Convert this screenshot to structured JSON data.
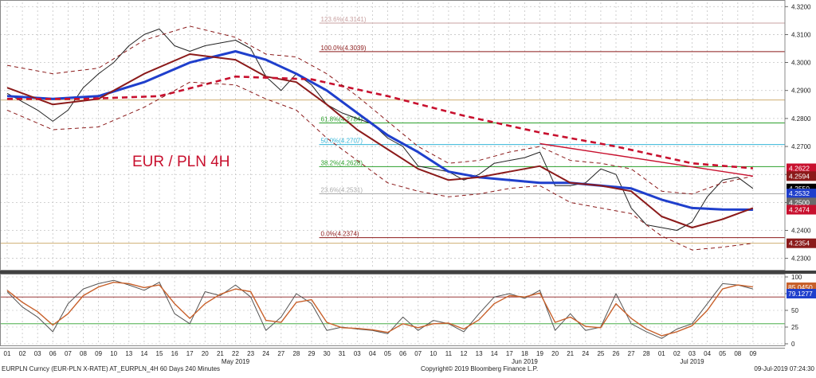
{
  "chart_data": [
    {
      "type": "line",
      "title": "EUR / PLN 4H",
      "y_axis": {
        "ticks": [
          "4.2300",
          "4.2400",
          "4.2500",
          "4.2600",
          "4.2700",
          "4.2800",
          "4.2900",
          "4.3000",
          "4.3100",
          "4.3200"
        ],
        "ylim": [
          4.2265,
          4.3215
        ]
      },
      "x_axis": {
        "day_labels": [
          "01",
          "02",
          "03",
          "06",
          "07",
          "08",
          "09",
          "10",
          "13",
          "14",
          "15",
          "16",
          "17",
          "20",
          "21",
          "22",
          "23",
          "24",
          "27",
          "28",
          "29",
          "30",
          "31",
          "03",
          "04",
          "05",
          "06",
          "07",
          "10",
          "11",
          "12",
          "13",
          "14",
          "17",
          "18",
          "19",
          "20",
          "21",
          "24",
          "25",
          "26",
          "27",
          "28",
          "01",
          "02",
          "03",
          "04",
          "05",
          "08",
          "09"
        ],
        "month_labels": [
          {
            "text": "May 2019",
            "day_index": 15
          },
          {
            "text": "Jun 2019",
            "day_index": 34
          },
          {
            "text": "Jul 2019",
            "day_index": 45
          }
        ]
      },
      "fibonacci_levels": [
        {
          "label": "123.6%(4.3141)",
          "value": 4.3141
        },
        {
          "label": "100.0%(4.3039)",
          "value": 4.3039
        },
        {
          "label": "61.8%(4.2784)",
          "value": 4.2784
        },
        {
          "label": "50.0%(4.2707)",
          "value": 4.2707
        },
        {
          "label": "38.2%(4.2628)",
          "value": 4.2628
        },
        {
          "label": "23.6%(4.2531)",
          "value": 4.2531
        },
        {
          "label": "0.0%(4.2374)",
          "value": 4.2374
        }
      ],
      "reference_lines": [
        4.2866,
        4.2354
      ],
      "price_tags": [
        {
          "text": "4.2622",
          "value": 4.2622,
          "color": "#c8102e"
        },
        {
          "text": "4.2594",
          "value": 4.2594,
          "color": "#8b1a1a"
        },
        {
          "text": "4.2550",
          "value": 4.255,
          "color": "#000000"
        },
        {
          "text": "4.2532",
          "value": 4.2532,
          "color": "#1f3fcc"
        },
        {
          "text": "4.2500",
          "value": 4.25,
          "color": "#6b6b6b"
        },
        {
          "text": "4.2474",
          "value": 4.2474,
          "color": "#c8102e"
        },
        {
          "text": "4.2354",
          "value": 4.2354,
          "color": "#8b1a1a"
        }
      ],
      "series": [
        {
          "name": "",
          "role": "price",
          "color": "#222222",
          "x": [
            0,
            1,
            2,
            3,
            4,
            5,
            6,
            7,
            8,
            9,
            10,
            11,
            12,
            13,
            14,
            15,
            16,
            17,
            18,
            19,
            20,
            21,
            22,
            23,
            24,
            25,
            26,
            27,
            28,
            29,
            30,
            31,
            32,
            33,
            34,
            35,
            36,
            37,
            38,
            39,
            40,
            41,
            42,
            43,
            44,
            45,
            46,
            47,
            48,
            49
          ],
          "values": [
            4.289,
            4.286,
            4.283,
            4.279,
            4.283,
            4.291,
            4.296,
            4.3,
            4.306,
            4.31,
            4.312,
            4.306,
            4.304,
            4.306,
            4.307,
            4.308,
            4.305,
            4.295,
            4.29,
            4.296,
            4.292,
            4.285,
            4.282,
            4.28,
            4.278,
            4.273,
            4.27,
            4.263,
            4.262,
            4.261,
            4.258,
            4.26,
            4.264,
            4.265,
            4.266,
            4.268,
            4.256,
            4.256,
            4.257,
            4.262,
            4.26,
            4.248,
            4.242,
            4.241,
            4.24,
            4.243,
            4.252,
            4.258,
            4.259,
            4.255
          ]
        },
        {
          "name": "",
          "role": "fast moving average",
          "color": "#1f3fcc",
          "x": [
            0,
            3,
            6,
            9,
            12,
            15,
            17,
            19,
            21,
            23,
            25,
            27,
            29,
            31,
            33,
            35,
            37,
            39,
            41,
            43,
            45,
            47,
            49
          ],
          "values": [
            4.288,
            4.287,
            4.288,
            4.293,
            4.3,
            4.304,
            4.301,
            4.296,
            4.29,
            4.282,
            4.274,
            4.268,
            4.261,
            4.259,
            4.258,
            4.257,
            4.257,
            4.256,
            4.255,
            4.251,
            4.248,
            4.2475,
            4.2474
          ]
        },
        {
          "name": "",
          "role": "mid moving average",
          "color": "#8b1a1a",
          "x": [
            0,
            3,
            6,
            9,
            12,
            15,
            17,
            19,
            21,
            23,
            25,
            27,
            29,
            31,
            33,
            35,
            37,
            39,
            41,
            43,
            45,
            47,
            49
          ],
          "values": [
            4.291,
            4.285,
            4.287,
            4.296,
            4.303,
            4.301,
            4.295,
            4.293,
            4.285,
            4.276,
            4.269,
            4.262,
            4.258,
            4.259,
            4.261,
            4.263,
            4.257,
            4.256,
            4.254,
            4.245,
            4.241,
            4.244,
            4.248
          ]
        },
        {
          "name": "",
          "role": "slow moving average",
          "color": "#c8102e",
          "x": [
            0,
            5,
            10,
            15,
            20,
            25,
            30,
            35,
            40,
            45,
            49
          ],
          "values": [
            4.287,
            4.287,
            4.288,
            4.295,
            4.294,
            4.288,
            4.281,
            4.275,
            4.27,
            4.264,
            4.2622
          ]
        },
        {
          "name": "",
          "role": "envelope upper",
          "color": "#8b1a1a",
          "x": [
            0,
            3,
            6,
            9,
            12,
            15,
            17,
            19,
            21,
            23,
            25,
            27,
            29,
            31,
            33,
            35,
            37,
            39,
            41,
            43,
            45,
            47,
            49
          ],
          "values": [
            4.299,
            4.296,
            4.298,
            4.308,
            4.313,
            4.309,
            4.303,
            4.302,
            4.296,
            4.288,
            4.279,
            4.27,
            4.264,
            4.265,
            4.268,
            4.27,
            4.265,
            4.264,
            4.262,
            4.254,
            4.253,
            4.257,
            4.2594
          ]
        },
        {
          "name": "",
          "role": "envelope lower",
          "color": "#8b1a1a",
          "x": [
            0,
            3,
            6,
            9,
            12,
            15,
            17,
            19,
            21,
            23,
            25,
            27,
            29,
            31,
            33,
            35,
            37,
            39,
            41,
            43,
            45,
            47,
            49
          ],
          "values": [
            4.283,
            4.276,
            4.277,
            4.284,
            4.293,
            4.292,
            4.287,
            4.283,
            4.273,
            4.265,
            4.257,
            4.254,
            4.252,
            4.253,
            4.255,
            4.256,
            4.25,
            4.248,
            4.246,
            4.238,
            4.233,
            4.234,
            4.2354
          ]
        },
        {
          "name": "",
          "role": "trendline",
          "color": "#c8102e",
          "x": [
            35,
            49
          ],
          "values": [
            4.271,
            4.2594
          ]
        }
      ],
      "grid": true
    },
    {
      "type": "line",
      "title": "",
      "y_axis": {
        "ticks": [
          "0",
          "25",
          "50",
          "75",
          "100"
        ],
        "ylim": [
          0,
          100
        ]
      },
      "reference_lines": [
        70,
        30
      ],
      "price_tags": [
        {
          "text": "85.0450",
          "color": "#c8602a"
        },
        {
          "text": "79.1277",
          "color": "#1f3fcc"
        }
      ],
      "series": [
        {
          "name": "",
          "role": "oscillator fast",
          "color": "#555555",
          "x": [
            0,
            1,
            2,
            3,
            4,
            5,
            6,
            7,
            8,
            9,
            10,
            11,
            12,
            13,
            14,
            15,
            16,
            17,
            18,
            19,
            20,
            21,
            22,
            23,
            24,
            25,
            26,
            27,
            28,
            29,
            30,
            31,
            32,
            33,
            34,
            35,
            36,
            37,
            38,
            39,
            40,
            41,
            42,
            43,
            44,
            45,
            46,
            47,
            48,
            49
          ],
          "values": [
            78,
            55,
            40,
            18,
            60,
            82,
            90,
            95,
            88,
            80,
            92,
            45,
            30,
            78,
            72,
            88,
            70,
            20,
            40,
            75,
            60,
            20,
            25,
            22,
            20,
            15,
            40,
            20,
            35,
            30,
            18,
            45,
            70,
            75,
            68,
            80,
            20,
            45,
            20,
            25,
            75,
            30,
            18,
            8,
            22,
            30,
            60,
            90,
            88,
            82
          ]
        },
        {
          "name": "",
          "role": "oscillator slow",
          "color": "#c8602a",
          "x": [
            0,
            1,
            2,
            3,
            4,
            5,
            6,
            7,
            8,
            9,
            10,
            11,
            12,
            13,
            14,
            15,
            16,
            17,
            18,
            19,
            20,
            21,
            22,
            23,
            24,
            25,
            26,
            27,
            28,
            29,
            30,
            31,
            32,
            33,
            34,
            35,
            36,
            37,
            38,
            39,
            40,
            41,
            42,
            43,
            44,
            45,
            46,
            47,
            48,
            49
          ],
          "values": [
            80,
            62,
            48,
            28,
            45,
            72,
            85,
            92,
            90,
            84,
            88,
            60,
            38,
            60,
            74,
            82,
            78,
            35,
            32,
            62,
            66,
            32,
            24,
            23,
            21,
            17,
            30,
            24,
            30,
            31,
            22,
            36,
            60,
            72,
            70,
            76,
            32,
            40,
            26,
            24,
            60,
            38,
            22,
            12,
            18,
            27,
            50,
            82,
            88,
            85
          ]
        }
      ],
      "grid": true
    }
  ],
  "footer": {
    "left": "EURPLN Curncy (EUR-PLN X-RATE) AT_EURPLN_4H 60 Days 240 Minutes",
    "center": "Copyright© 2019 Bloomberg Finance L.P.",
    "right": "09-Jul-2019 07:24:30"
  }
}
